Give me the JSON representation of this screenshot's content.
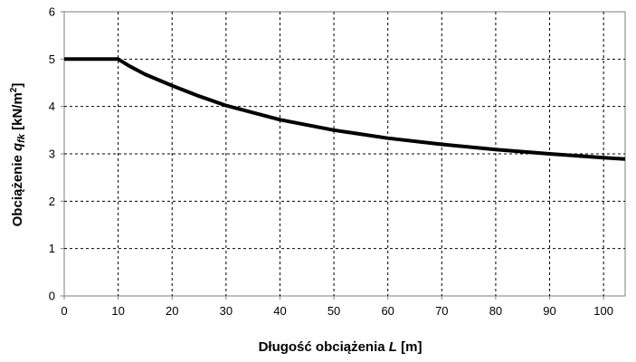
{
  "chart_data": {
    "type": "line",
    "xlabel": {
      "prefix": "Długość obciążenia ",
      "var": "L",
      "suffix": " [m]"
    },
    "ylabel": {
      "prefix": "Obciążenie ",
      "var": "q",
      "sub": "fk",
      "unit_pre": " [kN/m",
      "sup": "2",
      "unit_post": "]"
    },
    "xlim": [
      0,
      104
    ],
    "ylim": [
      0,
      6
    ],
    "xticks": [
      0,
      10,
      20,
      30,
      40,
      50,
      60,
      70,
      80,
      90,
      100
    ],
    "yticks": [
      0,
      1,
      2,
      3,
      4,
      5,
      6
    ],
    "grid": true,
    "grid_style": "dashed",
    "series": [
      {
        "x": [
          0,
          10,
          12,
          15,
          20,
          25,
          30,
          40,
          50,
          60,
          70,
          80,
          90,
          100,
          104
        ],
        "y": [
          5,
          5,
          4.86,
          4.68,
          4.44,
          4.22,
          4.02,
          3.72,
          3.5,
          3.33,
          3.2,
          3.09,
          3.0,
          2.92,
          2.89
        ],
        "color": "#000000"
      }
    ]
  }
}
